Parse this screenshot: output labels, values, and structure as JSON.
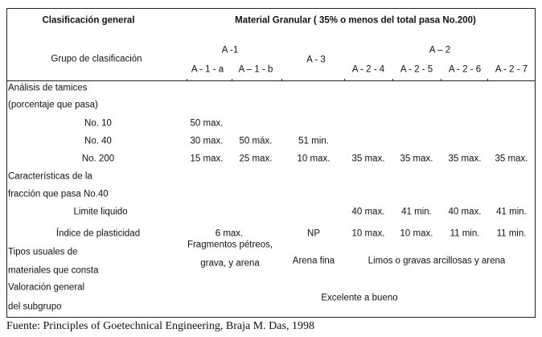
{
  "header": {
    "general_label": "Clasificación general",
    "general_value": "Material Granular ( 35% o menos del total pasa No.200)",
    "group_label": "Grupo de clasificación",
    "groups": {
      "a1": "A -1",
      "a3": "A - 3",
      "a2": "A – 2"
    },
    "subgroups": [
      "A - 1 - a",
      "A – 1 - b",
      "A - 2 - 4",
      "A - 2 - 5",
      "A - 2 - 6",
      "A - 2 - 7"
    ]
  },
  "sieve": {
    "title1": "Análisis de tamices",
    "title2": "(porcentaje que pasa)",
    "rows": [
      {
        "label": "No. 10",
        "a1a": "50 max."
      },
      {
        "label": "No. 40",
        "a1a": "30 max.",
        "a1b": "50 máx.",
        "a3": "51 min."
      },
      {
        "label": "No. 200",
        "a1a": "15 max.",
        "a1b": "25 max.",
        "a3": "10 max.",
        "a24": "35 max.",
        "a25": "35 max.",
        "a26": "35 max.",
        "a27": "35 max."
      }
    ]
  },
  "fraction": {
    "title1": "Características de la",
    "title2": "fracción que pasa No.40",
    "liquid": {
      "label": "Limite liquido",
      "a24": "40 max.",
      "a25": "41 min.",
      "a26": "40 max.",
      "a27": "41 min."
    },
    "plastic": {
      "label": "Índice de plasticidad",
      "a1": "6 max.",
      "a3": "NP",
      "a24": "10 max.",
      "a25": "10 max.",
      "a26": "11 min.",
      "a27": "11 min."
    }
  },
  "materials": {
    "title1": "Tipos usuales de",
    "title2": "materiales que consta",
    "a1_line1": "Fragmentos pétreos,",
    "a1_line2": "grava, y arena",
    "a3": "Arena fina",
    "a2": "Limos o gravas arcillosas y arena"
  },
  "rating": {
    "title1": "Valoración general",
    "title2": "del subgrupo",
    "value": "Excelente a bueno"
  },
  "footer": "Fuente: Principles of Goetechnical Engineering, Braja M. Das, 1998"
}
